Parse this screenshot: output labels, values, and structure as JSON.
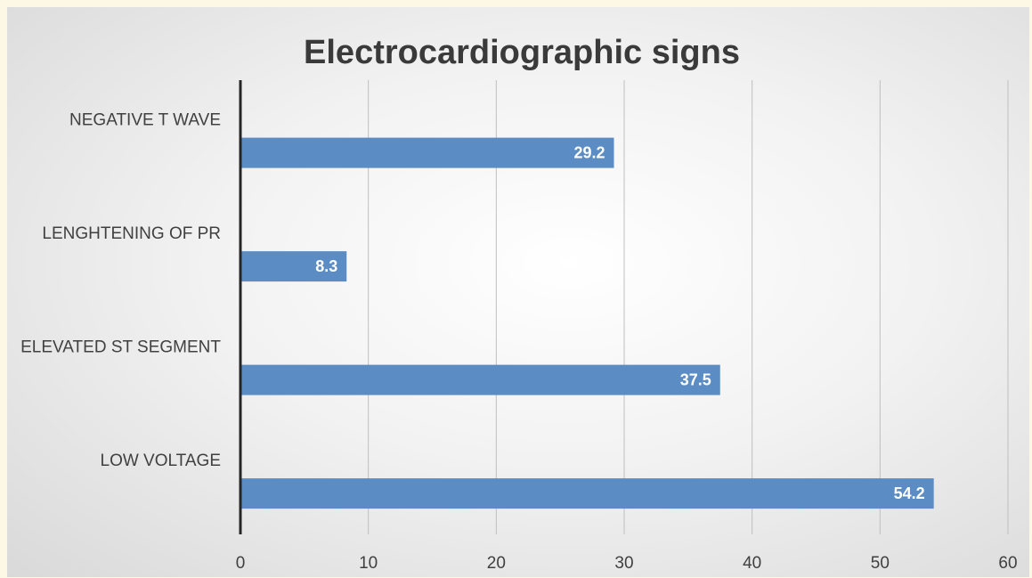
{
  "chart_data": {
    "type": "bar",
    "orientation": "horizontal",
    "title": "Electrocardiographic signs",
    "categories": [
      "NEGATIVE T WAVE",
      "LENGHTENING OF PR",
      "ELEVATED ST SEGMENT",
      "LOW VOLTAGE"
    ],
    "values": [
      29.2,
      8.3,
      37.5,
      54.2
    ],
    "data_labels": [
      "29.2",
      "8.3",
      "37.5",
      "54.2"
    ],
    "xlim": [
      0,
      60
    ],
    "x_ticks": [
      "0",
      "10",
      "20",
      "30",
      "40",
      "50",
      "60"
    ],
    "grid": true,
    "legend": "none",
    "bar_color": "#5b8cc4",
    "gridline_color": "#bfbfbf",
    "axis_color": "#262626"
  }
}
